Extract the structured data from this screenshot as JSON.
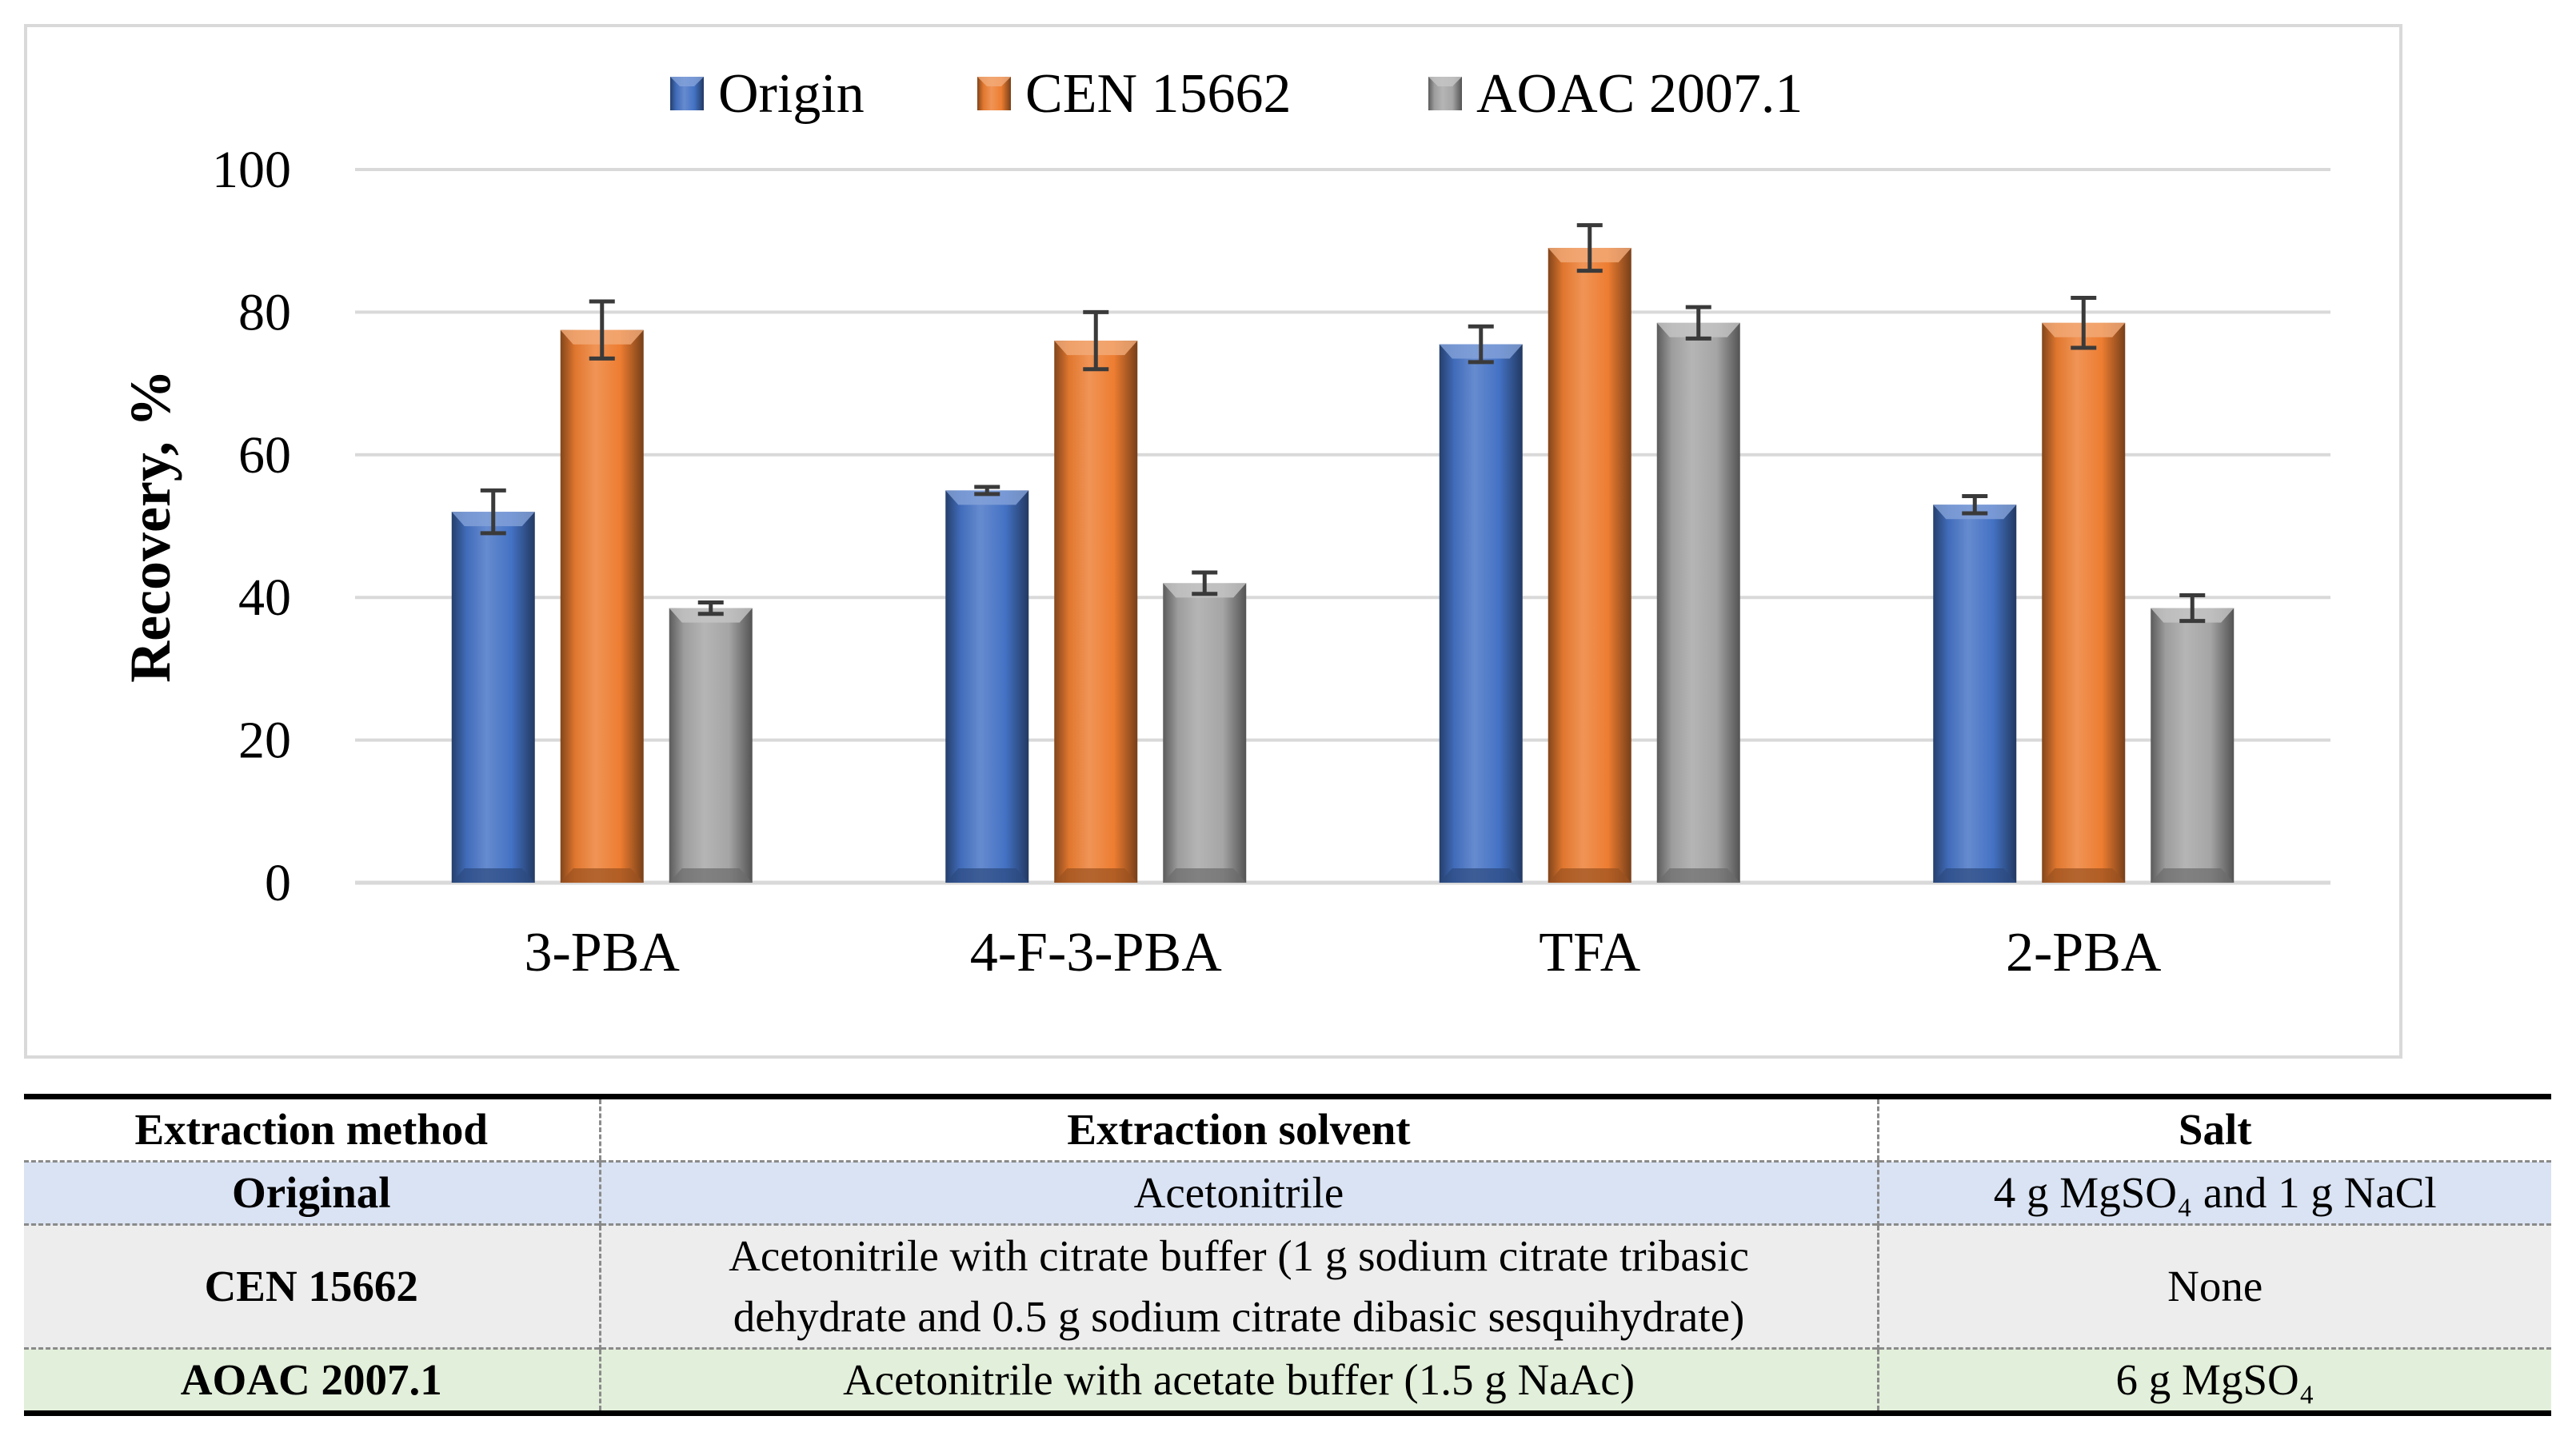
{
  "colors": {
    "origin": "#4472c4",
    "cen": "#ed7d31",
    "aoac": "#a5a5a5",
    "gridline": "#d9d9d9",
    "error_bar": "#3a3a3a"
  },
  "chart_data": {
    "type": "bar",
    "title": "",
    "xlabel": "",
    "ylabel": "Recovery, %",
    "ylim": [
      0,
      100
    ],
    "yticks": [
      "0",
      "20",
      "40",
      "60",
      "80",
      "100"
    ],
    "grid": true,
    "legend_position": "top",
    "categories": [
      "3-PBA",
      "4-F-3-PBA",
      "TFA",
      "2-PBA"
    ],
    "series": [
      {
        "name": "Origin",
        "color": "#4472c4",
        "values": [
          52,
          55,
          75.5,
          53
        ],
        "errors": [
          3,
          0.5,
          2.5,
          1.2
        ]
      },
      {
        "name": "CEN 15662",
        "color": "#ed7d31",
        "values": [
          77.5,
          76,
          89,
          78.5
        ],
        "errors": [
          4,
          4,
          3.2,
          3.5
        ]
      },
      {
        "name": "AOAC 2007.1",
        "color": "#a5a5a5",
        "values": [
          38.5,
          42,
          78.5,
          38.5
        ],
        "errors": [
          0.8,
          1.5,
          2.2,
          1.8
        ]
      }
    ]
  },
  "table": {
    "headers": [
      "Extraction method",
      "Extraction solvent",
      "Salt"
    ],
    "rows": [
      {
        "method": "Original",
        "solvent": "Acetonitrile",
        "salt": "4 g MgSO₄ and 1 g NaCl"
      },
      {
        "method": "CEN 15662",
        "solvent_line1": "Acetonitrile with citrate buffer (1 g sodium citrate tribasic",
        "solvent_line2": "dehydrate and 0.5 g sodium citrate dibasic sesquihydrate)",
        "salt": "None"
      },
      {
        "method": "AOAC 2007.1",
        "solvent": "Acetonitrile with acetate buffer (1.5 g NaAc)",
        "salt": "6 g MgSO₄"
      }
    ]
  }
}
